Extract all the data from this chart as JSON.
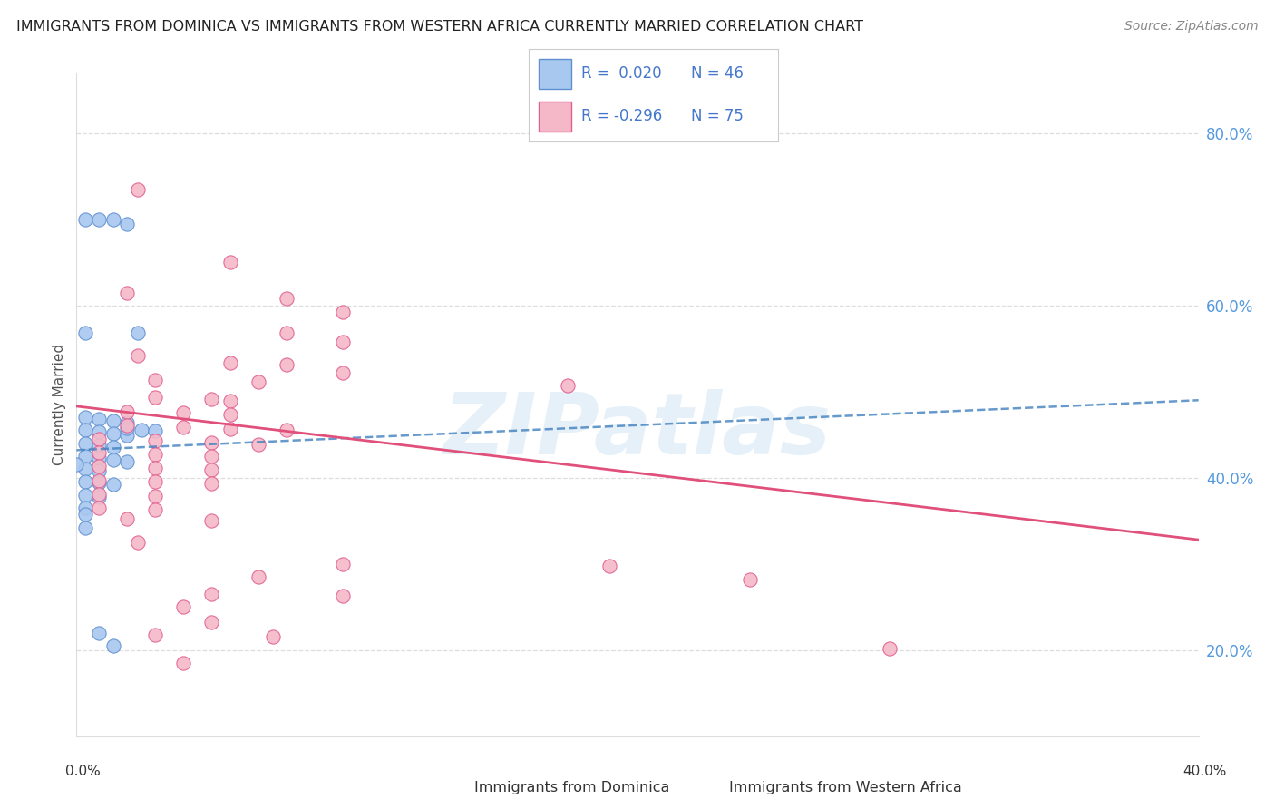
{
  "title": "IMMIGRANTS FROM DOMINICA VS IMMIGRANTS FROM WESTERN AFRICA CURRENTLY MARRIED CORRELATION CHART",
  "source": "Source: ZipAtlas.com",
  "ylabel": "Currently Married",
  "xmin": 0.0,
  "xmax": 0.4,
  "ymin": 0.1,
  "ymax": 0.87,
  "yticks": [
    0.2,
    0.4,
    0.6,
    0.8
  ],
  "ytick_labels": [
    "20.0%",
    "40.0%",
    "60.0%",
    "80.0%"
  ],
  "color_blue": "#a8c8f0",
  "color_pink": "#f5b8c8",
  "edge_blue": "#6090d0",
  "edge_pink": "#e06090",
  "trendline_blue_color": "#4080c0",
  "trendline_pink_color": "#e0507a",
  "watermark": "ZIPatlas",
  "blue_points": [
    [
      0.003,
      0.7
    ],
    [
      0.008,
      0.7
    ],
    [
      0.013,
      0.7
    ],
    [
      0.018,
      0.695
    ],
    [
      0.003,
      0.568
    ],
    [
      0.022,
      0.568
    ],
    [
      0.003,
      0.47
    ],
    [
      0.008,
      0.468
    ],
    [
      0.013,
      0.466
    ],
    [
      0.018,
      0.464
    ],
    [
      0.003,
      0.455
    ],
    [
      0.008,
      0.453
    ],
    [
      0.013,
      0.451
    ],
    [
      0.018,
      0.449
    ],
    [
      0.003,
      0.44
    ],
    [
      0.008,
      0.438
    ],
    [
      0.013,
      0.436
    ],
    [
      0.003,
      0.425
    ],
    [
      0.008,
      0.423
    ],
    [
      0.013,
      0.421
    ],
    [
      0.018,
      0.419
    ],
    [
      0.003,
      0.41
    ],
    [
      0.008,
      0.408
    ],
    [
      0.003,
      0.396
    ],
    [
      0.008,
      0.394
    ],
    [
      0.013,
      0.392
    ],
    [
      0.003,
      0.38
    ],
    [
      0.008,
      0.378
    ],
    [
      0.003,
      0.365
    ],
    [
      0.018,
      0.458
    ],
    [
      0.023,
      0.456
    ],
    [
      0.028,
      0.454
    ],
    [
      0.003,
      0.342
    ],
    [
      0.008,
      0.22
    ],
    [
      0.013,
      0.205
    ],
    [
      0.003,
      0.358
    ],
    [
      0.0,
      0.415
    ]
  ],
  "pink_points": [
    [
      0.022,
      0.735
    ],
    [
      0.055,
      0.65
    ],
    [
      0.075,
      0.608
    ],
    [
      0.095,
      0.592
    ],
    [
      0.075,
      0.568
    ],
    [
      0.095,
      0.558
    ],
    [
      0.055,
      0.533
    ],
    [
      0.075,
      0.531
    ],
    [
      0.028,
      0.513
    ],
    [
      0.065,
      0.511
    ],
    [
      0.095,
      0.522
    ],
    [
      0.028,
      0.493
    ],
    [
      0.048,
      0.491
    ],
    [
      0.055,
      0.489
    ],
    [
      0.018,
      0.477
    ],
    [
      0.038,
      0.475
    ],
    [
      0.055,
      0.473
    ],
    [
      0.018,
      0.461
    ],
    [
      0.038,
      0.459
    ],
    [
      0.055,
      0.457
    ],
    [
      0.075,
      0.455
    ],
    [
      0.008,
      0.445
    ],
    [
      0.028,
      0.443
    ],
    [
      0.048,
      0.441
    ],
    [
      0.065,
      0.439
    ],
    [
      0.008,
      0.429
    ],
    [
      0.028,
      0.427
    ],
    [
      0.048,
      0.425
    ],
    [
      0.008,
      0.413
    ],
    [
      0.028,
      0.411
    ],
    [
      0.048,
      0.409
    ],
    [
      0.008,
      0.397
    ],
    [
      0.028,
      0.395
    ],
    [
      0.048,
      0.393
    ],
    [
      0.008,
      0.381
    ],
    [
      0.028,
      0.379
    ],
    [
      0.008,
      0.365
    ],
    [
      0.028,
      0.363
    ],
    [
      0.018,
      0.352
    ],
    [
      0.048,
      0.35
    ],
    [
      0.022,
      0.325
    ],
    [
      0.095,
      0.3
    ],
    [
      0.065,
      0.285
    ],
    [
      0.048,
      0.265
    ],
    [
      0.095,
      0.263
    ],
    [
      0.038,
      0.25
    ],
    [
      0.048,
      0.232
    ],
    [
      0.028,
      0.218
    ],
    [
      0.07,
      0.216
    ],
    [
      0.038,
      0.185
    ],
    [
      0.018,
      0.615
    ],
    [
      0.022,
      0.542
    ],
    [
      0.175,
      0.507
    ],
    [
      0.19,
      0.298
    ],
    [
      0.29,
      0.202
    ],
    [
      0.24,
      0.282
    ]
  ],
  "blue_trend_x": [
    0.0,
    0.4
  ],
  "blue_trend_y": [
    0.432,
    0.49
  ],
  "pink_trend_x": [
    0.0,
    0.4
  ],
  "pink_trend_y": [
    0.483,
    0.328
  ]
}
